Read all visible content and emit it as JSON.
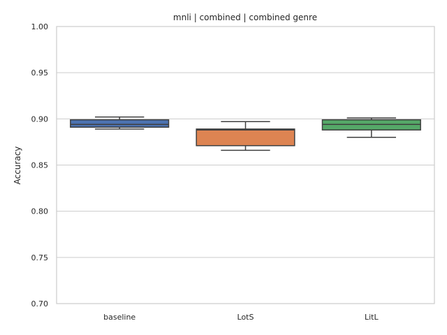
{
  "chart_data": {
    "type": "box",
    "title": "mnli | combined | combined genre",
    "xlabel": "",
    "ylabel": "Accuracy",
    "ylim": [
      0.7,
      1.0
    ],
    "yticks": [
      "0.70",
      "0.75",
      "0.80",
      "0.85",
      "0.90",
      "0.95",
      "1.00"
    ],
    "grid": "horizontal",
    "categories": [
      "baseline",
      "LotS",
      "LitL"
    ],
    "boxes": [
      {
        "category": "baseline",
        "min": 0.889,
        "q1": 0.891,
        "median": 0.894,
        "q3": 0.899,
        "max": 0.902,
        "color": "#4c72b0"
      },
      {
        "category": "LotS",
        "min": 0.866,
        "q1": 0.871,
        "median": 0.888,
        "q3": 0.889,
        "max": 0.897,
        "color": "#dd8452"
      },
      {
        "category": "LitL",
        "min": 0.88,
        "q1": 0.888,
        "median": 0.894,
        "q3": 0.899,
        "max": 0.901,
        "color": "#55a868"
      }
    ]
  }
}
